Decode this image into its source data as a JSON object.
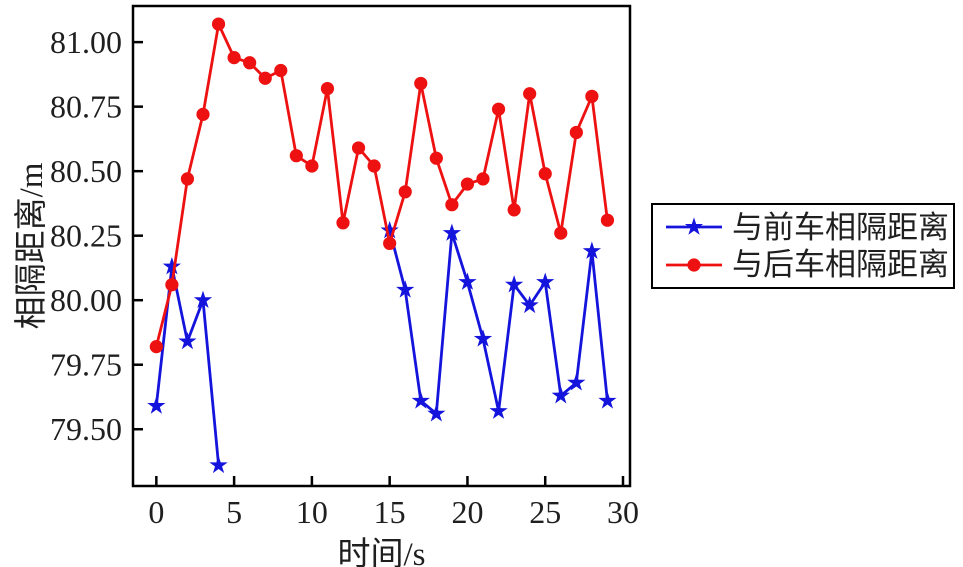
{
  "chart_data": {
    "type": "line",
    "title": "",
    "xlabel": "时间/s",
    "ylabel": "相隔距离/m",
    "xlim": [
      -1.5,
      30.45
    ],
    "ylim": [
      79.28,
      81.14
    ],
    "xticks": [
      0,
      5,
      10,
      15,
      20,
      25,
      30
    ],
    "xtick_labels": [
      "0",
      "5",
      "10",
      "15",
      "20",
      "25",
      "30"
    ],
    "yticks": [
      79.5,
      79.75,
      80.0,
      80.25,
      80.5,
      80.75,
      81.0
    ],
    "ytick_labels": [
      "79.50",
      "79.75",
      "80.00",
      "80.25",
      "80.50",
      "80.75",
      "81.00"
    ],
    "grid": false,
    "legend_position": "outside-right",
    "axis_color": "#000000",
    "text_color": "#1f1f1f",
    "background_color": "#ffffff",
    "series": [
      {
        "name": "与前车相隔距离",
        "color": "#1414dd",
        "marker": "star",
        "x": [
          0,
          1,
          2,
          3,
          4,
          15,
          16,
          17,
          18,
          19,
          20,
          21,
          22,
          23,
          24,
          25,
          26,
          27,
          28,
          29
        ],
        "y": [
          79.59,
          80.13,
          79.84,
          80.0,
          79.36,
          80.27,
          80.04,
          79.61,
          79.56,
          80.26,
          80.07,
          79.85,
          79.57,
          80.06,
          79.98,
          80.07,
          79.63,
          79.68,
          80.19,
          79.61
        ]
      },
      {
        "name": "与后车相隔距离",
        "color": "#ee1111",
        "marker": "circle",
        "x": [
          0,
          1,
          2,
          3,
          4,
          5,
          6,
          7,
          8,
          9,
          10,
          11,
          12,
          13,
          14,
          15,
          16,
          17,
          18,
          19,
          20,
          21,
          22,
          23,
          24,
          25,
          26,
          27,
          28,
          29
        ],
        "y": [
          79.82,
          80.06,
          80.47,
          80.72,
          81.07,
          80.94,
          80.92,
          80.86,
          80.89,
          80.56,
          80.52,
          80.82,
          80.3,
          80.59,
          80.52,
          80.22,
          80.42,
          80.84,
          80.55,
          80.37,
          80.45,
          80.47,
          80.74,
          80.35,
          80.8,
          80.49,
          80.26,
          80.65,
          80.79,
          80.31
        ]
      }
    ]
  }
}
